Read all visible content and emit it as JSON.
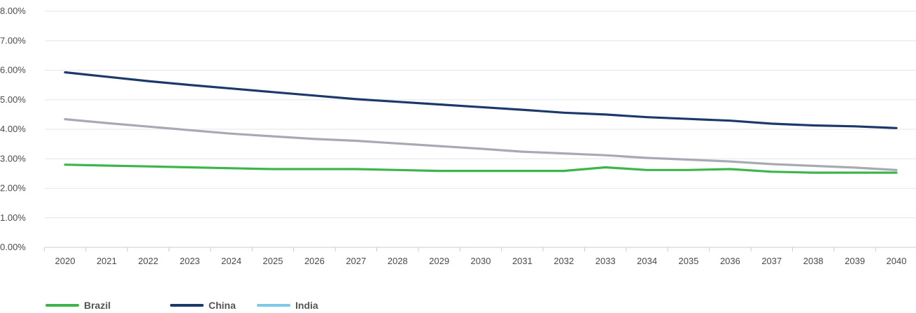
{
  "chart_data": {
    "type": "line",
    "title": "",
    "xlabel": "",
    "ylabel": "",
    "x": [
      "2020",
      "2021",
      "2022",
      "2023",
      "2024",
      "2025",
      "2026",
      "2027",
      "2028",
      "2029",
      "2030",
      "2031",
      "2032",
      "2033",
      "2034",
      "2035",
      "2036",
      "2037",
      "2038",
      "2039",
      "2040"
    ],
    "ylim": [
      0,
      8
    ],
    "y_ticks": [
      "0.00%",
      "1.00%",
      "2.00%",
      "3.00%",
      "4.00%",
      "5.00%",
      "6.00%",
      "7.00%",
      "8.00%"
    ],
    "grid": true,
    "legend_position": "bottom-left",
    "series": [
      {
        "name": "Brazil",
        "color": "#3cb54a",
        "values": [
          2.8,
          2.77,
          2.74,
          2.71,
          2.68,
          2.65,
          2.65,
          2.65,
          2.62,
          2.59,
          2.59,
          2.59,
          2.59,
          2.71,
          2.62,
          2.62,
          2.65,
          2.56,
          2.53,
          2.53,
          2.53
        ]
      },
      {
        "name": "China",
        "color": "#1b3a6b",
        "values": [
          5.93,
          5.78,
          5.63,
          5.5,
          5.38,
          5.26,
          5.14,
          5.02,
          4.93,
          4.84,
          4.75,
          4.66,
          4.56,
          4.5,
          4.41,
          4.35,
          4.29,
          4.19,
          4.13,
          4.1,
          4.04
        ]
      },
      {
        "name": "India",
        "color": "#7fc8e8",
        "line_color_drawn": "#a7a9b4",
        "values": [
          4.34,
          4.21,
          4.09,
          3.97,
          3.85,
          3.76,
          3.67,
          3.61,
          3.52,
          3.43,
          3.34,
          3.24,
          3.18,
          3.12,
          3.03,
          2.97,
          2.91,
          2.82,
          2.76,
          2.7,
          2.62
        ]
      }
    ]
  },
  "colors": {
    "grid": "#e6e6e6",
    "axis": "#cccccc",
    "text": "#4a4a4a"
  }
}
